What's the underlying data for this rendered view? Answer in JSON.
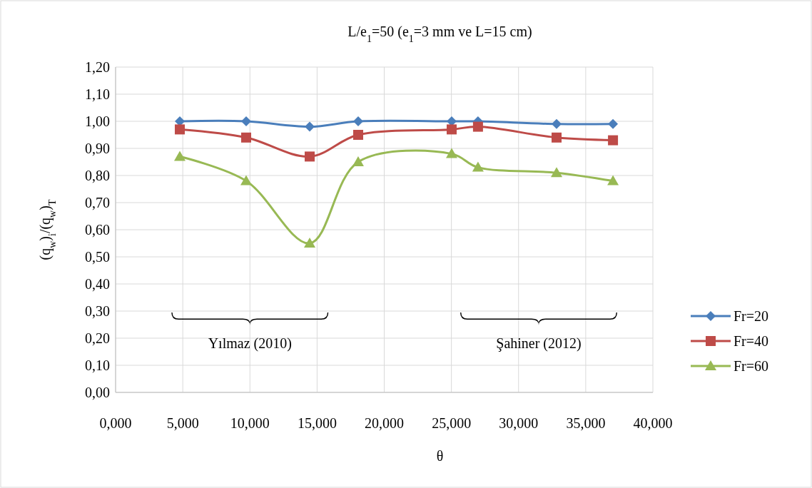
{
  "chart_data": {
    "type": "line",
    "title": "L/e$_{1}$=50 (e$_{1}$=3 mm ve L=15 cm)",
    "xlabel": "θ",
    "ylabel": "(q$_{w}$)$_{i}$/(q$_{w}$)$_{T}$",
    "x": [
      4.78,
      9.72,
      14.45,
      18.06,
      25.02,
      26.98,
      32.83,
      37.03
    ],
    "series": [
      {
        "name": "Fr=20",
        "color": "#4a7ebb",
        "marker": "diamond",
        "values": [
          1.0,
          1.0,
          0.98,
          1.0,
          1.0,
          1.0,
          0.99,
          0.99
        ]
      },
      {
        "name": "Fr=40",
        "color": "#be4b48",
        "marker": "square",
        "values": [
          0.97,
          0.94,
          0.87,
          0.95,
          0.97,
          0.98,
          0.94,
          0.93
        ]
      },
      {
        "name": "Fr=60",
        "color": "#98b954",
        "marker": "triangle",
        "values": [
          0.87,
          0.78,
          0.55,
          0.85,
          0.88,
          0.83,
          0.81,
          0.78
        ]
      }
    ],
    "xlim": [
      0,
      40
    ],
    "xticks": [
      {
        "value": 0,
        "label": "0,000"
      },
      {
        "value": 5,
        "label": "5,000"
      },
      {
        "value": 10,
        "label": "10,000"
      },
      {
        "value": 15,
        "label": "15,000"
      },
      {
        "value": 20,
        "label": "20,000"
      },
      {
        "value": 25,
        "label": "25,000"
      },
      {
        "value": 30,
        "label": "30,000"
      },
      {
        "value": 35,
        "label": "35,000"
      },
      {
        "value": 40,
        "label": "40,000"
      }
    ],
    "ylim": [
      0,
      1.2
    ],
    "yticks": [
      {
        "value": 0,
        "label": "0,00"
      },
      {
        "value": 0.1,
        "label": "0,10"
      },
      {
        "value": 0.2,
        "label": "0,20"
      },
      {
        "value": 0.3,
        "label": "0,30"
      },
      {
        "value": 0.4,
        "label": "0,40"
      },
      {
        "value": 0.5,
        "label": "0,50"
      },
      {
        "value": 0.6,
        "label": "0,60"
      },
      {
        "value": 0.7,
        "label": "0,70"
      },
      {
        "value": 0.8,
        "label": "0,80"
      },
      {
        "value": 0.9,
        "label": "0,90"
      },
      {
        "value": 1.0,
        "label": "1,00"
      },
      {
        "value": 1.1,
        "label": "1,10"
      },
      {
        "value": 1.2,
        "label": "1,20"
      }
    ],
    "annotations": [
      "Yılmaz (2010)",
      "Şahiner (2012)"
    ],
    "grid": true,
    "legend": "right",
    "line_style": "solid"
  }
}
